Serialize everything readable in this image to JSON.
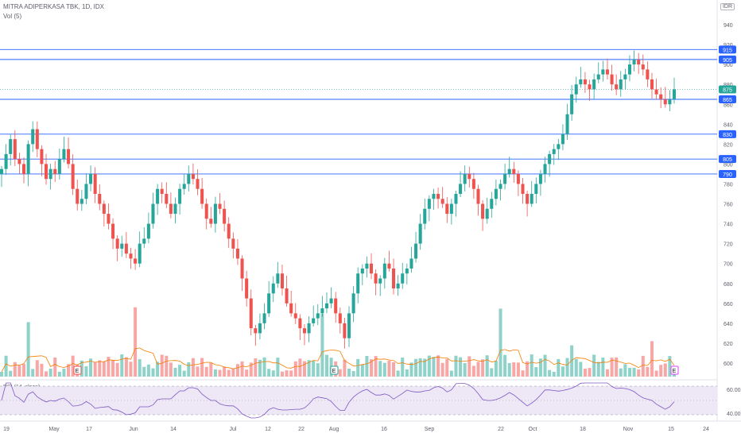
{
  "header": {
    "title": "MITRA ADIPERKASA TBK, 1D, IDX",
    "volume_label": "Vol (5)",
    "rsi_label": "RSI (14, close)",
    "currency": "IDR"
  },
  "colors": {
    "up": "#26a69a",
    "down": "#ef5350",
    "up_vol": "#8fd2c9",
    "down_vol": "#f7a8a6",
    "level_line": "#2962ff",
    "ma_line": "#f57c00",
    "rsi_line": "#7e57c2",
    "rsi_band": "#ede7f6"
  },
  "chart_data": {
    "type": "candlestick",
    "title": "MITRA ADIPERKASA TBK, 1D, IDX",
    "price_axis": [
      940,
      920,
      900,
      880,
      860,
      840,
      820,
      800,
      780,
      760,
      740,
      720,
      700,
      680,
      660,
      640,
      620,
      600
    ],
    "ylim": [
      596,
      952
    ],
    "x_labels": [
      "19",
      "May",
      "17",
      "Jun",
      "14",
      "Jul",
      "12",
      "22",
      "Aug",
      "16",
      "Sep",
      "22",
      "Oct",
      "18",
      "Nov",
      "15",
      "24"
    ],
    "levels": [
      {
        "value": 915,
        "label": "915",
        "color": "#2962ff"
      },
      {
        "value": 905,
        "label": "905",
        "color": "#2962ff"
      },
      {
        "value": 865,
        "label": "865",
        "color": "#2962ff"
      },
      {
        "value": 830,
        "label": "830",
        "color": "#2962ff"
      },
      {
        "value": 805,
        "label": "805",
        "color": "#2962ff"
      },
      {
        "value": 790,
        "label": "790",
        "color": "#2962ff"
      }
    ],
    "last_price": {
      "value": 875,
      "label": "875"
    },
    "earnings_markers": [
      "E",
      "E",
      "E"
    ],
    "close": [
      795,
      810,
      825,
      805,
      800,
      790,
      820,
      835,
      815,
      800,
      785,
      795,
      790,
      805,
      815,
      800,
      775,
      760,
      765,
      780,
      790,
      770,
      760,
      750,
      740,
      725,
      715,
      720,
      710,
      705,
      700,
      720,
      725,
      740,
      760,
      775,
      770,
      760,
      750,
      760,
      775,
      780,
      790,
      785,
      775,
      760,
      745,
      740,
      760,
      755,
      740,
      725,
      715,
      705,
      685,
      665,
      635,
      630,
      640,
      650,
      670,
      680,
      690,
      675,
      660,
      650,
      645,
      635,
      630,
      640,
      645,
      650,
      655,
      660,
      665,
      650,
      640,
      625,
      650,
      670,
      690,
      695,
      700,
      690,
      680,
      685,
      700,
      695,
      675,
      680,
      690,
      695,
      705,
      720,
      740,
      755,
      765,
      770,
      765,
      760,
      750,
      760,
      770,
      780,
      790,
      785,
      775,
      760,
      745,
      755,
      765,
      775,
      780,
      790,
      795,
      790,
      780,
      770,
      760,
      770,
      780,
      790,
      800,
      810,
      815,
      820,
      830,
      850,
      870,
      880,
      885,
      880,
      875,
      885,
      890,
      895,
      890,
      880,
      875,
      885,
      890,
      900,
      905,
      900,
      895,
      885,
      875,
      870,
      865,
      860,
      865,
      875
    ],
    "rsi_levels": [
      "60.00",
      "40.00"
    ],
    "volume_ma_period": 5
  }
}
